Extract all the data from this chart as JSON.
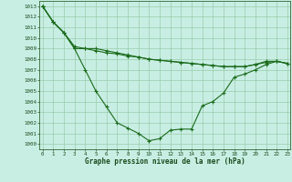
{
  "x": [
    0,
    1,
    2,
    3,
    4,
    5,
    6,
    7,
    8,
    9,
    10,
    11,
    12,
    13,
    14,
    15,
    16,
    17,
    18,
    19,
    20,
    21,
    22,
    23
  ],
  "series1": [
    1013,
    1011.5,
    1010.5,
    1009.0,
    1007.0,
    1005.0,
    1003.5,
    1002.0,
    1001.5,
    1001.0,
    1000.3,
    1000.5,
    1001.3,
    1001.4,
    1001.4,
    1003.6,
    1004.0,
    1004.8,
    1006.3,
    1006.6,
    1007.0,
    1007.5,
    1007.8,
    1007.6
  ],
  "series2": [
    1013,
    1011.5,
    1010.5,
    1009.0,
    1009.0,
    1009.0,
    1008.8,
    1008.6,
    1008.4,
    1008.2,
    1008.0,
    1007.9,
    1007.8,
    1007.7,
    1007.6,
    1007.5,
    1007.4,
    1007.3,
    1007.3,
    1007.3,
    1007.5,
    1007.8,
    1007.8,
    1007.6
  ],
  "series3": [
    1013,
    1011.5,
    1010.5,
    1009.2,
    1009.0,
    1008.8,
    1008.6,
    1008.5,
    1008.3,
    1008.2,
    1008.0,
    1007.9,
    1007.8,
    1007.7,
    1007.6,
    1007.5,
    1007.4,
    1007.3,
    1007.3,
    1007.3,
    1007.5,
    1007.7,
    1007.8,
    1007.6
  ],
  "ylim": [
    999.5,
    1013.5
  ],
  "ytick_min": 1000,
  "ytick_max": 1013,
  "xticks": [
    0,
    1,
    2,
    3,
    4,
    5,
    6,
    7,
    8,
    9,
    10,
    11,
    12,
    13,
    14,
    15,
    16,
    17,
    18,
    19,
    20,
    21,
    22,
    23
  ],
  "xlabel": "Graphe pression niveau de la mer (hPa)",
  "line_color": "#1a6b1a",
  "bg_color": "#c8eee4",
  "grid_color": "#99ccaa",
  "marker": "+"
}
